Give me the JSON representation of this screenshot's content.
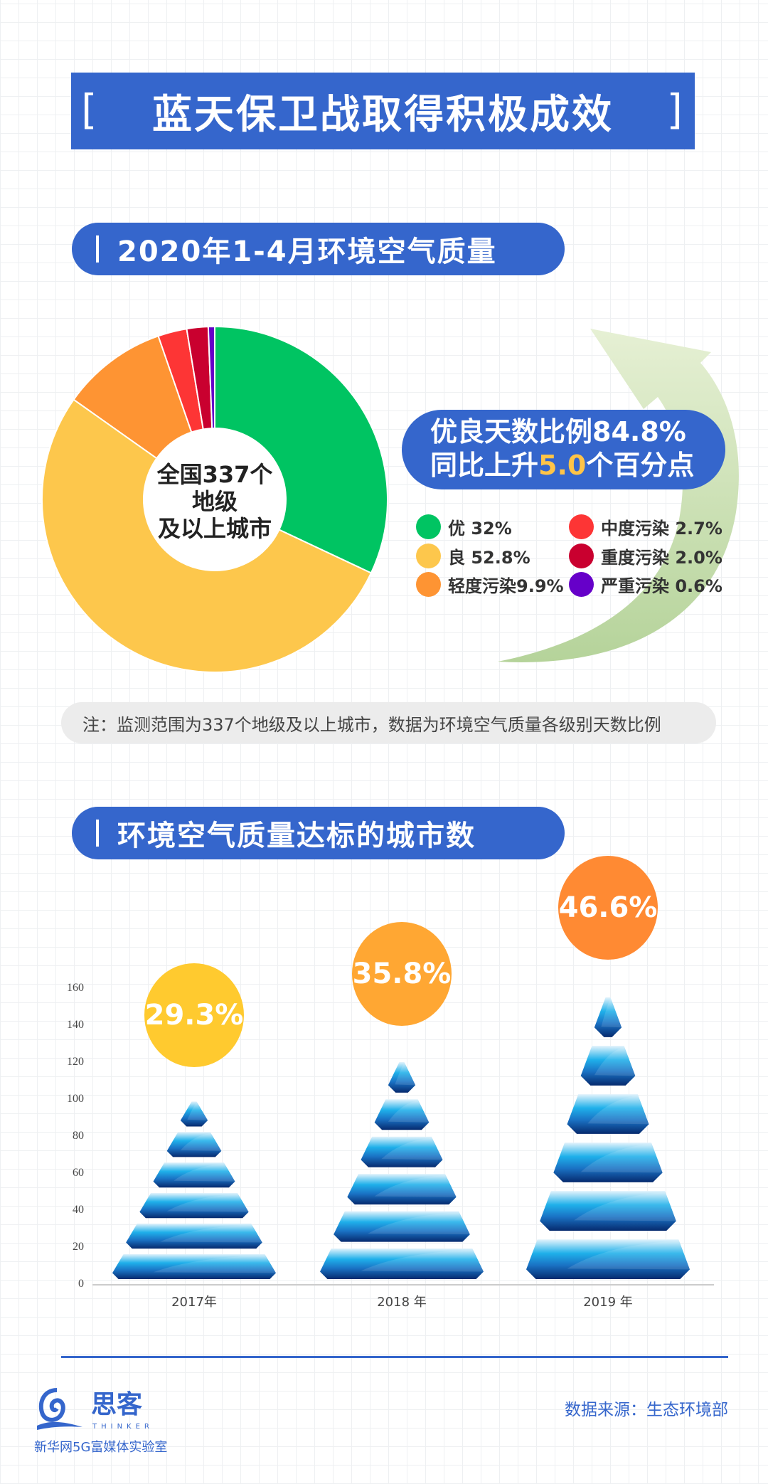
{
  "header": {
    "title": "蓝天保卫战取得积极成效",
    "bracket_left": "[",
    "bracket_right": "]"
  },
  "section1": {
    "title": "2020年1-4月环境空气质量"
  },
  "donut": {
    "center_lines": [
      "全国337个",
      "地级",
      "及以上城市"
    ],
    "slices": [
      {
        "label": "优",
        "value": 32,
        "text": "优 32%",
        "color": "#00c462"
      },
      {
        "label": "良",
        "value": 52.8,
        "text": "良 52.8%",
        "color": "#fdc74c"
      },
      {
        "label": "轻度污染",
        "value": 9.9,
        "text": "轻度污染9.9%",
        "color": "#fe9433"
      },
      {
        "label": "中度污染",
        "value": 2.7,
        "text": "中度污染 2.7%",
        "color": "#fd3535"
      },
      {
        "label": "重度污染",
        "value": 2.0,
        "text": "重度污染 2.0%",
        "color": "#c9002f"
      },
      {
        "label": "严重污染",
        "value": 0.6,
        "text": "严重污染 0.6%",
        "color": "#6600c9"
      }
    ]
  },
  "callout": {
    "line1": "优良天数比例84.8%",
    "line2_pre": "同比上升",
    "line2_hl": "5.0",
    "line2_post": "个百分点"
  },
  "note": "注：监测范围为337个地级及以上城市，数据为环境空气质量各级别天数比例",
  "section2": {
    "title": "环境空气质量达标的城市数"
  },
  "chart_data": {
    "type": "bar",
    "style": "pyramid",
    "categories": [
      "2017年",
      "2018 年",
      "2019 年"
    ],
    "values": [
      99,
      121,
      157
    ],
    "annotations": [
      "29.3%",
      "35.8%",
      "46.6%"
    ],
    "annotation_colors": [
      "#ffca2f",
      "#ffa733",
      "#ff8a33"
    ],
    "yticks": [
      0,
      20,
      40,
      60,
      80,
      100,
      120,
      140,
      160
    ],
    "ylim": [
      0,
      160
    ],
    "grid": false
  },
  "footer": {
    "source": "数据来源：生态环境部",
    "logo_text": "思客",
    "logo_en": "THINKER",
    "org": "新华网5G富媒体实验室"
  },
  "colors": {
    "accent": "#3566cc"
  }
}
